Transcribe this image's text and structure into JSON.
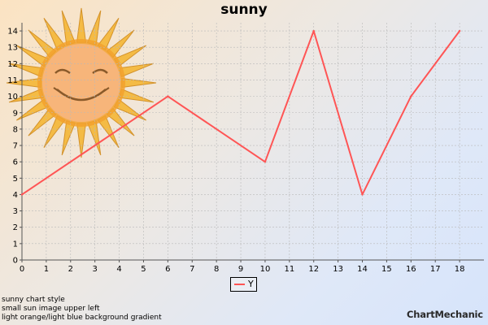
{
  "chart_data": {
    "type": "line",
    "title": "sunny",
    "x": [
      0,
      6,
      10,
      12,
      14,
      16,
      18
    ],
    "series": [
      {
        "name": "Y",
        "values": [
          4,
          10,
          6,
          14,
          4,
          10,
          14
        ],
        "color": "#ff5555"
      }
    ],
    "x_ticks": [
      "0",
      "1",
      "2",
      "3",
      "4",
      "5",
      "6",
      "7",
      "8",
      "9",
      "10",
      "11",
      "12",
      "13",
      "14",
      "15",
      "16",
      "17",
      "18"
    ],
    "y_ticks": [
      "0",
      "1",
      "2",
      "3",
      "4",
      "5",
      "6",
      "7",
      "8",
      "9",
      "10",
      "11",
      "12",
      "13",
      "14"
    ],
    "xlim": [
      0,
      19
    ],
    "ylim": [
      0,
      14.5
    ],
    "grid": true,
    "legend_position": "bottom-center"
  },
  "notes": [
    "sunny chart style",
    "small sun image upper left",
    "light orange/light blue background gradient"
  ],
  "brand": {
    "text": "ChartMechanic"
  },
  "colors": {
    "line": "#ff5555",
    "sun_outer": "#f5a623",
    "sun_inner": "#f7b66a"
  }
}
